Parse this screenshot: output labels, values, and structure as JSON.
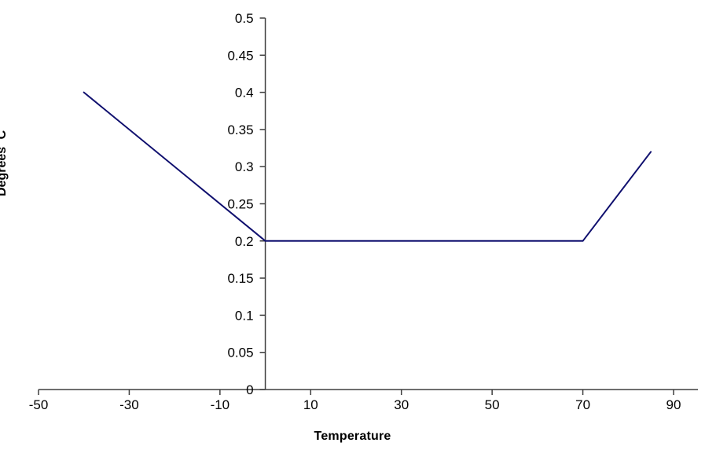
{
  "figure": {
    "background": "#ffffff"
  },
  "chart_data": {
    "type": "line",
    "title": "",
    "xlabel": "Temperature",
    "ylabel": "Degrees C",
    "xlim": [
      -50,
      90
    ],
    "ylim": [
      0,
      0.5
    ],
    "grid": false,
    "legend": "none",
    "x_tick_values": [
      -50,
      -30,
      -10,
      10,
      30,
      50,
      70,
      90
    ],
    "x_tick_labels": [
      "-50",
      "-30",
      "-10",
      "10",
      "30",
      "50",
      "70",
      "90"
    ],
    "y_tick_values": [
      0,
      0.05,
      0.1,
      0.15,
      0.2,
      0.25,
      0.3,
      0.35,
      0.4,
      0.45,
      0.5
    ],
    "y_tick_labels": [
      "0",
      "0.05",
      "0.1",
      "0.15",
      "0.2",
      "0.25",
      "0.3",
      "0.35",
      "0.4",
      "0.45",
      "0.5"
    ],
    "y_axis_at_x": 0,
    "axis_color": "#3f3f3f",
    "tick_label_color": "#000000",
    "series": [
      {
        "name": "Degrees C",
        "color": "#0f0f6e",
        "points": [
          [
            -40,
            0.4
          ],
          [
            0,
            0.2
          ],
          [
            70,
            0.2
          ],
          [
            85,
            0.32
          ]
        ]
      }
    ]
  }
}
